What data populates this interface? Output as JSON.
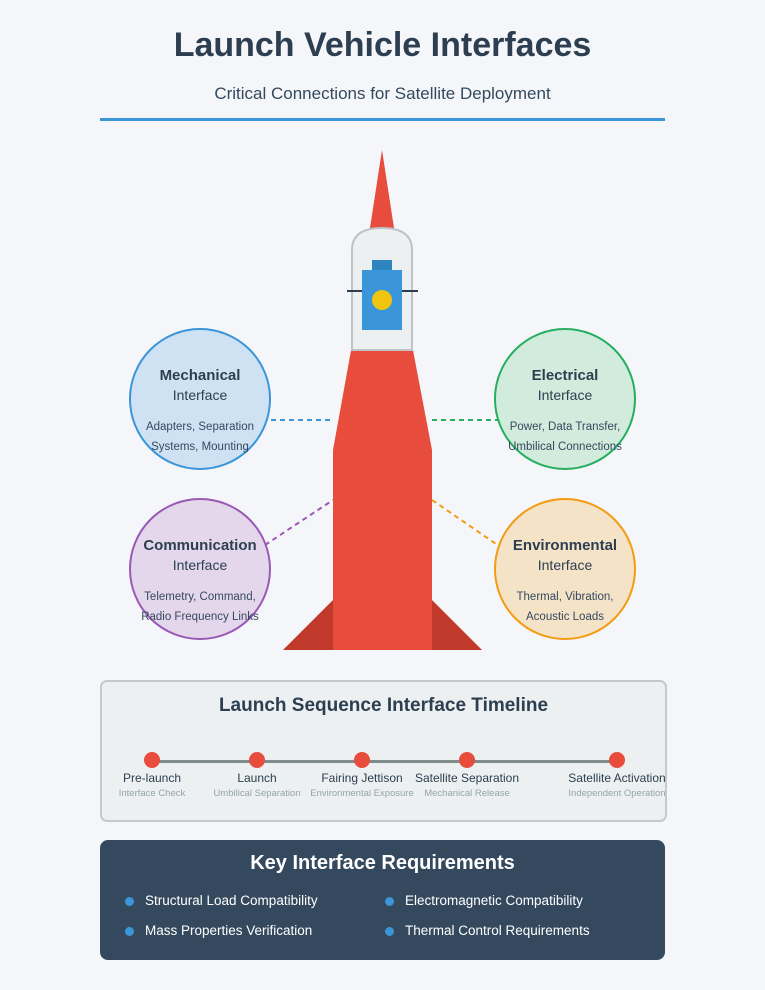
{
  "header": {
    "title": "Launch Vehicle Interfaces",
    "subtitle": "Critical Connections for Satellite Deployment",
    "accent_color": "#3a96d8"
  },
  "interfaces": [
    {
      "title": "Mechanical",
      "subtitle": "Interface",
      "desc1": "Adapters, Separation",
      "desc2": "Systems, Mounting",
      "fill": "#cfe2f3",
      "stroke": "#3a96d8"
    },
    {
      "title": "Electrical",
      "subtitle": "Interface",
      "desc1": "Power, Data Transfer,",
      "desc2": "Umbilical Connections",
      "fill": "#d1ecdc",
      "stroke": "#27ae60"
    },
    {
      "title": "Communication",
      "subtitle": "Interface",
      "desc1": "Telemetry, Command,",
      "desc2": "Radio Frequency Links",
      "fill": "#e4d7ec",
      "stroke": "#9b59b6"
    },
    {
      "title": "Environmental",
      "subtitle": "Interface",
      "desc1": "Thermal, Vibration,",
      "desc2": "Acoustic Loads",
      "fill": "#f5e3c8",
      "stroke": "#f39c12"
    }
  ],
  "rocket": {
    "body_color": "#e74c3c",
    "fin_color": "#c0392b",
    "fairing_color": "#ecf0f1",
    "satellite_color": "#3a96d8",
    "sensor_color": "#f1c40f"
  },
  "timeline": {
    "title": "Launch Sequence Interface Timeline",
    "steps": [
      {
        "label": "Pre-launch",
        "sub": "Interface Check"
      },
      {
        "label": "Launch",
        "sub": "Umbilical Separation"
      },
      {
        "label": "Fairing Jettison",
        "sub": "Environmental Exposure"
      },
      {
        "label": "Satellite Separation",
        "sub": "Mechanical Release"
      },
      {
        "label": "Satellite Activation",
        "sub": "Independent Operation"
      }
    ]
  },
  "requirements": {
    "title": "Key Interface Requirements",
    "items": [
      "Structural Load Compatibility",
      "Electromagnetic Compatibility",
      "Mass Properties Verification",
      "Thermal Control Requirements"
    ]
  }
}
